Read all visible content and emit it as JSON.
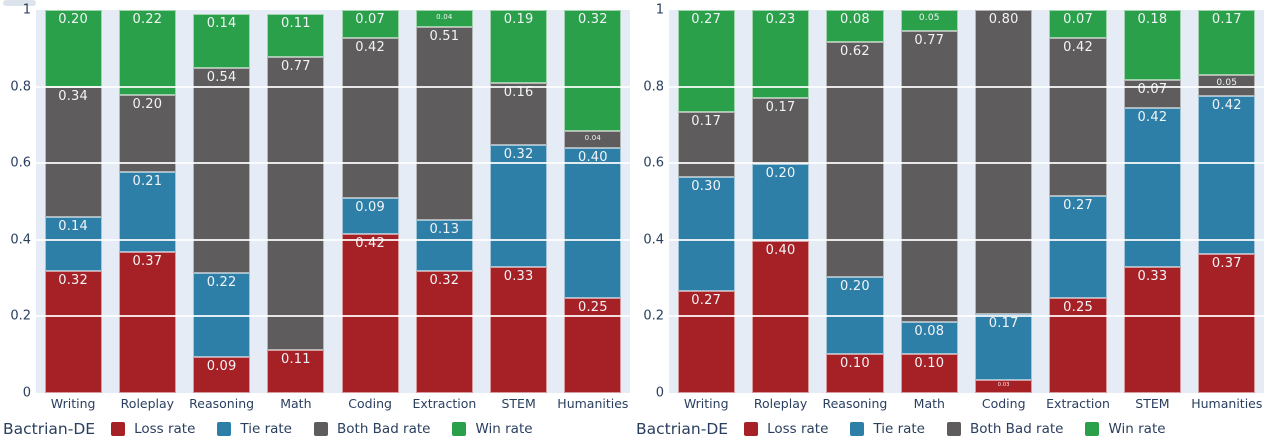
{
  "colors": {
    "loss": "#a62126",
    "tie": "#2e7fa8",
    "both_bad": "#5e5c5c",
    "win": "#2aa04a",
    "plot_bg": "#e5ecf6",
    "grid": "#ffffff",
    "text": "#2a3f5f"
  },
  "y_axis": {
    "ticks": [
      "1",
      "0.8",
      "0.6",
      "0.4",
      "0.2",
      "0"
    ],
    "range": [
      0,
      1
    ]
  },
  "legend": {
    "title": "Bactrian-DE",
    "items": [
      {
        "label": "Loss rate",
        "color_key": "loss"
      },
      {
        "label": "Tie rate",
        "color_key": "tie"
      },
      {
        "label": "Both Bad rate",
        "color_key": "both_bad"
      },
      {
        "label": "Win rate",
        "color_key": "win"
      }
    ]
  },
  "chart_data": [
    {
      "type": "bar",
      "stacked": true,
      "title": "",
      "xlabel": "",
      "ylabel": "",
      "ylim": [
        0,
        1
      ],
      "grid": true,
      "legend_position": "bottom",
      "legend_title": "Bactrian-DE",
      "categories": [
        "Writing",
        "Roleplay",
        "Reasoning",
        "Math",
        "Coding",
        "Extraction",
        "STEM",
        "Humanities"
      ],
      "series": [
        {
          "name": "Loss rate",
          "color_key": "loss",
          "values": [
            0.32,
            0.37,
            0.09,
            0.11,
            0.42,
            0.32,
            0.33,
            0.25
          ]
        },
        {
          "name": "Tie rate",
          "color_key": "tie",
          "values": [
            0.14,
            0.21,
            0.22,
            0.0,
            0.09,
            0.13,
            0.32,
            0.4
          ]
        },
        {
          "name": "Both Bad rate",
          "color_key": "both_bad",
          "values": [
            0.34,
            0.2,
            0.54,
            0.77,
            0.42,
            0.51,
            0.16,
            0.04
          ]
        },
        {
          "name": "Win rate",
          "color_key": "win",
          "values": [
            0.2,
            0.22,
            0.14,
            0.11,
            0.07,
            0.04,
            0.19,
            0.32
          ]
        }
      ]
    },
    {
      "type": "bar",
      "stacked": true,
      "title": "",
      "xlabel": "",
      "ylabel": "",
      "ylim": [
        0,
        1
      ],
      "grid": true,
      "legend_position": "bottom",
      "legend_title": "Bactrian-DE",
      "categories": [
        "Writing",
        "Roleplay",
        "Reasoning",
        "Math",
        "Coding",
        "Extraction",
        "STEM",
        "Humanities"
      ],
      "series": [
        {
          "name": "Loss rate",
          "color_key": "loss",
          "values": [
            0.27,
            0.4,
            0.1,
            0.1,
            0.03,
            0.25,
            0.33,
            0.37
          ]
        },
        {
          "name": "Tie rate",
          "color_key": "tie",
          "values": [
            0.3,
            0.2,
            0.2,
            0.08,
            0.17,
            0.27,
            0.42,
            0.42
          ]
        },
        {
          "name": "Both Bad rate",
          "color_key": "both_bad",
          "values": [
            0.17,
            0.17,
            0.62,
            0.77,
            0.8,
            0.42,
            0.07,
            0.05
          ]
        },
        {
          "name": "Win rate",
          "color_key": "win",
          "values": [
            0.27,
            0.23,
            0.08,
            0.05,
            0.0,
            0.07,
            0.18,
            0.17
          ]
        }
      ]
    }
  ]
}
